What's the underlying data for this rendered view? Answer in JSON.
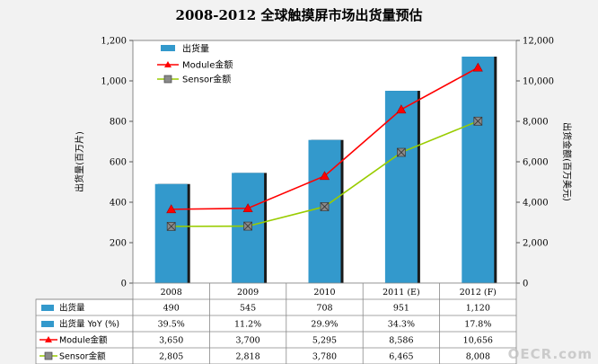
{
  "chart_data": {
    "type": "bar",
    "title": "2008-2012 全球触摸屏市场出货量预估",
    "ylabel": "出货量(百万片)",
    "y2label": "出货金额(百万美元)",
    "categories": [
      "2008",
      "2009",
      "2010",
      "2011 (E)",
      "2012 (F)"
    ],
    "ylim": [
      0,
      1200
    ],
    "y2lim": [
      0,
      12000
    ],
    "yticks": [
      "0",
      "200",
      "400",
      "600",
      "800",
      "1,000",
      "1,200"
    ],
    "y2ticks": [
      "0",
      "2,000",
      "4,000",
      "6,000",
      "8,000",
      "10,000",
      "12,000"
    ],
    "grid": false,
    "legend_position": "top-left",
    "series": [
      {
        "name": "出货量",
        "kind": "bar",
        "axis": "left",
        "color": "#3399cc",
        "values": [
          490,
          545,
          708,
          951,
          1120
        ]
      },
      {
        "name": "Module金额",
        "kind": "line",
        "axis": "right",
        "color": "#ff0000",
        "marker": "triangle",
        "values": [
          3650,
          3700,
          5295,
          8586,
          10656
        ]
      },
      {
        "name": "Sensor金额",
        "kind": "line",
        "axis": "right",
        "color": "#99cc00",
        "marker": "square",
        "values": [
          2805,
          2818,
          3780,
          6465,
          8008
        ]
      }
    ],
    "table": {
      "header": [
        "2008",
        "2009",
        "2010",
        "2011 (E)",
        "2012 (F)"
      ],
      "rows": [
        {
          "label": "出货量",
          "key": "bar",
          "cells": [
            "490",
            "545",
            "708",
            "951",
            "1,120"
          ]
        },
        {
          "label": "出货量 YoY (%)",
          "key": "bar",
          "cells": [
            "39.5%",
            "11.2%",
            "29.9%",
            "34.3%",
            "17.8%"
          ]
        },
        {
          "label": "Module金额",
          "key": "tri",
          "cells": [
            "3,650",
            "3,700",
            "5,295",
            "8,586",
            "10,656"
          ]
        },
        {
          "label": "Sensor金额",
          "key": "sq",
          "cells": [
            "2,805",
            "2,818",
            "3,780",
            "6,465",
            "8,008"
          ]
        }
      ]
    }
  },
  "watermark": "OECR.com"
}
